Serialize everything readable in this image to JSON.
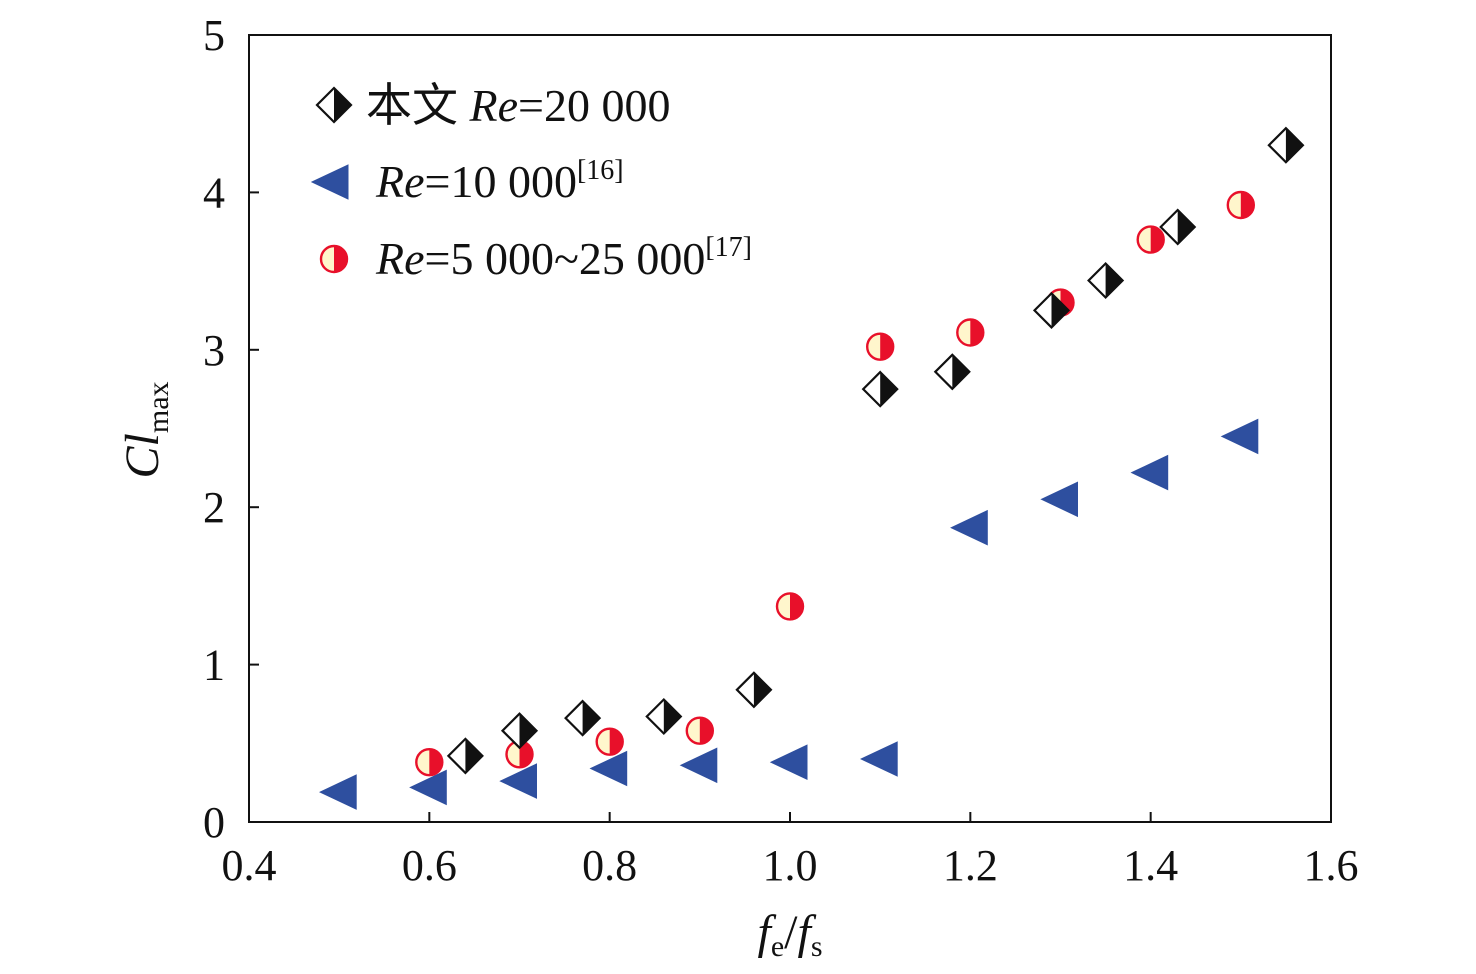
{
  "chart_data": {
    "type": "scatter",
    "xlim": [
      0.4,
      1.6
    ],
    "ylim": [
      0,
      5
    ],
    "x_ticks": [
      "0.4",
      "0.6",
      "0.8",
      "1.0",
      "1.2",
      "1.4",
      "1.6"
    ],
    "y_ticks": [
      "0",
      "1",
      "2",
      "3",
      "4",
      "5"
    ],
    "xlabel": {
      "parts": [
        "f",
        "e",
        "/",
        "f",
        "s"
      ]
    },
    "ylabel": {
      "main": "Cl",
      "sub": "max"
    },
    "legend_position": "top-left",
    "series": [
      {
        "name_parts": [
          "本文 ",
          "Re",
          "=20 000"
        ],
        "marker": "half-filled-diamond",
        "color": "#111111",
        "points": [
          [
            0.64,
            0.42
          ],
          [
            0.7,
            0.58
          ],
          [
            0.77,
            0.66
          ],
          [
            0.86,
            0.67
          ],
          [
            0.96,
            0.84
          ],
          [
            1.1,
            2.75
          ],
          [
            1.18,
            2.86
          ],
          [
            1.29,
            3.25
          ],
          [
            1.35,
            3.44
          ],
          [
            1.43,
            3.78
          ],
          [
            1.55,
            4.3
          ]
        ]
      },
      {
        "name_parts": [
          "Re",
          "=10 000",
          "[16]"
        ],
        "marker": "left-triangle",
        "color": "#2e4f9f",
        "points": [
          [
            0.5,
            0.19
          ],
          [
            0.6,
            0.22
          ],
          [
            0.7,
            0.26
          ],
          [
            0.8,
            0.34
          ],
          [
            0.9,
            0.36
          ],
          [
            1.0,
            0.38
          ],
          [
            1.1,
            0.4
          ],
          [
            1.2,
            1.87
          ],
          [
            1.3,
            2.05
          ],
          [
            1.4,
            2.22
          ],
          [
            1.5,
            2.45
          ]
        ]
      },
      {
        "name_parts": [
          "Re",
          "=5 000~25 000",
          "[17]"
        ],
        "marker": "half-filled-circle",
        "color": "#e8102a",
        "points": [
          [
            0.6,
            0.38
          ],
          [
            0.7,
            0.43
          ],
          [
            0.8,
            0.51
          ],
          [
            0.9,
            0.58
          ],
          [
            1.0,
            1.37
          ],
          [
            1.1,
            3.02
          ],
          [
            1.2,
            3.11
          ],
          [
            1.3,
            3.3
          ],
          [
            1.4,
            3.7
          ],
          [
            1.5,
            3.92
          ]
        ]
      }
    ]
  }
}
